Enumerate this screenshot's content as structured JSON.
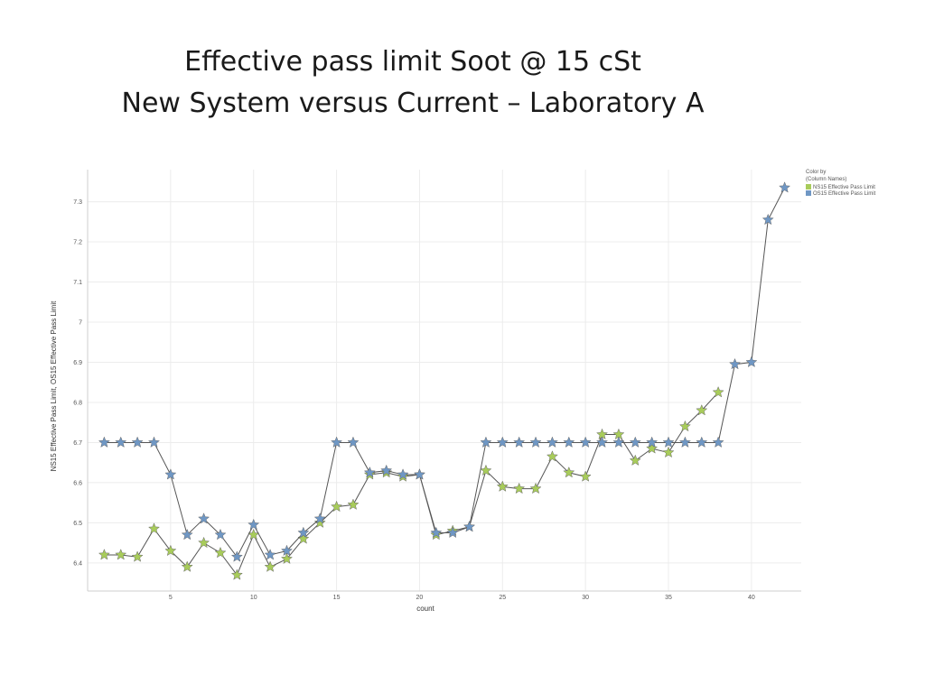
{
  "title_lines": [
    "Effective pass limit Soot @ 15 cSt",
    "New System versus Current – Laboratory A"
  ],
  "chart_data": {
    "type": "line",
    "xlabel": "count",
    "ylabel": "NS15 Effective Pass Limit, OS15 Effective Pass Limit",
    "xlim": [
      0,
      43
    ],
    "ylim": [
      6.33,
      7.38
    ],
    "x_ticks": [
      5,
      10,
      15,
      20,
      25,
      30,
      35,
      40
    ],
    "y_ticks": [
      6.4,
      6.5,
      6.6,
      6.7,
      6.8,
      6.9,
      7.0,
      7.1,
      7.2,
      7.3
    ],
    "y_tick_labels": [
      "6.4",
      "6.5",
      "6.6",
      "6.7",
      "6.8",
      "6.9",
      "7",
      "7.1",
      "7.2",
      "7.3"
    ],
    "grid": true,
    "marker": "star",
    "legend": {
      "position": "top-right",
      "title_lines": [
        "Color by",
        "(Column Names)"
      ],
      "entries": [
        "NS15 Effective Pass Limit",
        "OS15 Effective Pass Limit"
      ]
    },
    "series": [
      {
        "name": "NS15 Effective Pass Limit",
        "color": "#a8cc5a",
        "x": [
          1,
          2,
          3,
          4,
          5,
          6,
          7,
          8,
          9,
          10,
          11,
          12,
          13,
          14,
          15,
          16,
          17,
          18,
          19,
          20,
          21,
          22,
          23,
          24,
          25,
          26,
          27,
          28,
          29,
          30,
          31,
          32,
          33,
          34,
          35,
          36,
          37,
          38
        ],
        "values": [
          6.42,
          6.42,
          6.415,
          6.485,
          6.43,
          6.39,
          6.45,
          6.425,
          6.37,
          6.47,
          6.39,
          6.41,
          6.46,
          6.5,
          6.54,
          6.545,
          6.62,
          6.625,
          6.615,
          6.62,
          6.47,
          6.48,
          6.49,
          6.63,
          6.59,
          6.585,
          6.585,
          6.665,
          6.625,
          6.615,
          6.72,
          6.72,
          6.655,
          6.685,
          6.675,
          6.74,
          6.78,
          6.825
        ]
      },
      {
        "name": "OS15 Effective Pass Limit",
        "color": "#6f97c4",
        "x": [
          1,
          2,
          3,
          4,
          5,
          6,
          7,
          8,
          9,
          10,
          11,
          12,
          13,
          14,
          15,
          16,
          17,
          18,
          19,
          20,
          21,
          22,
          23,
          24,
          25,
          26,
          27,
          28,
          29,
          30,
          31,
          32,
          33,
          34,
          35,
          36,
          37,
          38,
          39,
          40,
          41,
          42
        ],
        "values": [
          6.7,
          6.7,
          6.7,
          6.7,
          6.62,
          6.47,
          6.51,
          6.47,
          6.415,
          6.495,
          6.42,
          6.43,
          6.475,
          6.51,
          6.7,
          6.7,
          6.625,
          6.63,
          6.62,
          6.62,
          6.475,
          6.475,
          6.49,
          6.7,
          6.7,
          6.7,
          6.7,
          6.7,
          6.7,
          6.7,
          6.7,
          6.7,
          6.7,
          6.7,
          6.7,
          6.7,
          6.7,
          6.7,
          6.895,
          6.9,
          7.255,
          7.335
        ]
      }
    ]
  }
}
